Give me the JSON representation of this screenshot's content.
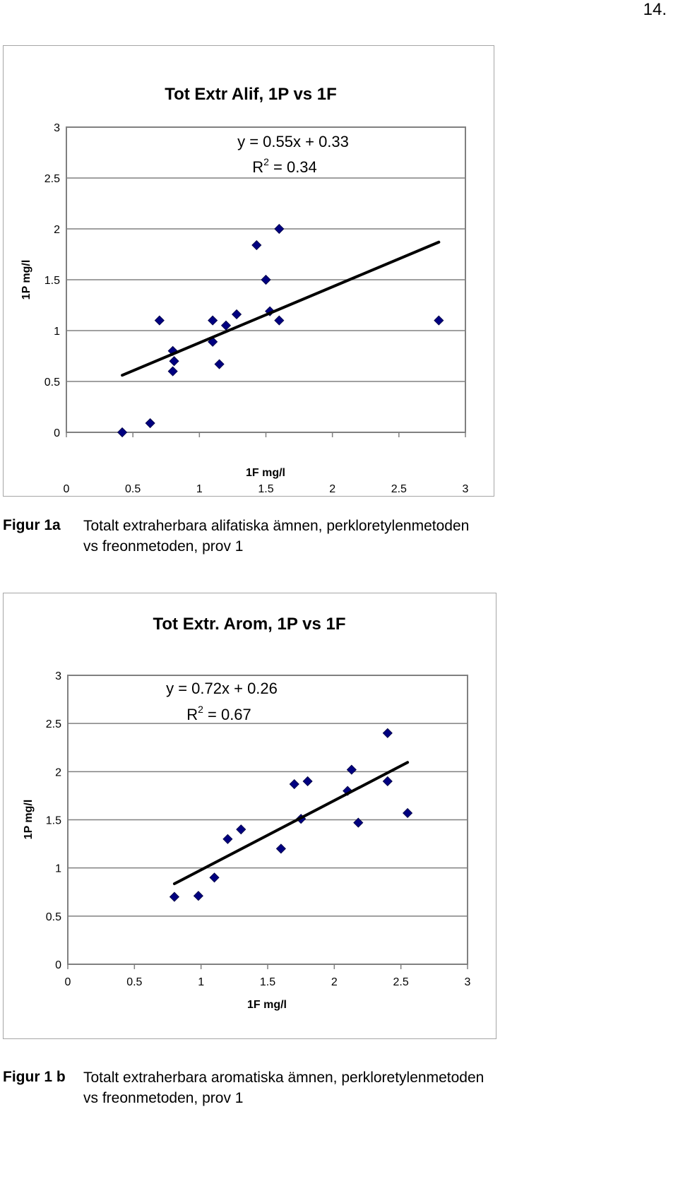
{
  "page": {
    "number": "14."
  },
  "chart_data": [
    {
      "type": "scatter",
      "title": "Tot Extr Alif, 1P vs 1F",
      "xlabel": "1F mg/l",
      "ylabel": "1P mg/l",
      "xlim": [
        0,
        3
      ],
      "ylim": [
        0,
        3
      ],
      "x_ticks": [
        "0",
        "0.5",
        "1",
        "1.5",
        "2",
        "2.5",
        "3"
      ],
      "y_ticks": [
        "0",
        "0.5",
        "1",
        "1.5",
        "2",
        "2.5",
        "3"
      ],
      "grid": "horizontal",
      "marker_color": "#000080",
      "trendline_color": "#000000",
      "equation": {
        "line1": "y = 0.55x + 0.33",
        "r_prefix": "R",
        "r_sup": "2",
        "r_suffix": " = 0.34"
      },
      "trendline": {
        "slope": 0.55,
        "intercept": 0.33,
        "x_range": [
          0.42,
          2.8
        ]
      },
      "points": [
        [
          0.42,
          0.0
        ],
        [
          0.63,
          0.09
        ],
        [
          0.7,
          1.1
        ],
        [
          0.8,
          0.8
        ],
        [
          0.8,
          0.6
        ],
        [
          0.81,
          0.7
        ],
        [
          1.1,
          1.1
        ],
        [
          1.1,
          0.89
        ],
        [
          1.15,
          0.67
        ],
        [
          1.2,
          1.05
        ],
        [
          1.28,
          1.16
        ],
        [
          1.43,
          1.84
        ],
        [
          1.5,
          1.5
        ],
        [
          1.53,
          1.19
        ],
        [
          1.6,
          2.0
        ],
        [
          1.6,
          1.1
        ],
        [
          2.8,
          1.1
        ]
      ]
    },
    {
      "type": "scatter",
      "title": "Tot Extr. Arom, 1P vs 1F",
      "xlabel": "1F mg/l",
      "ylabel": "1P mg/l",
      "xlim": [
        0,
        3
      ],
      "ylim": [
        0,
        3
      ],
      "x_ticks": [
        "0",
        "0.5",
        "1",
        "1.5",
        "2",
        "2.5",
        "3"
      ],
      "y_ticks": [
        "0",
        "0.5",
        "1",
        "1.5",
        "2",
        "2.5",
        "3"
      ],
      "grid": "horizontal",
      "marker_color": "#000080",
      "trendline_color": "#000000",
      "equation": {
        "line1": "y = 0.72x + 0.26",
        "r_prefix": "R",
        "r_sup": "2",
        "r_suffix": " = 0.67"
      },
      "trendline": {
        "slope": 0.72,
        "intercept": 0.26,
        "x_range": [
          0.8,
          2.55
        ]
      },
      "points": [
        [
          0.8,
          0.7
        ],
        [
          0.98,
          0.71
        ],
        [
          1.1,
          0.9
        ],
        [
          1.2,
          1.3
        ],
        [
          1.3,
          1.4
        ],
        [
          1.6,
          1.2
        ],
        [
          1.7,
          1.87
        ],
        [
          1.75,
          1.51
        ],
        [
          1.8,
          1.9
        ],
        [
          2.1,
          1.8
        ],
        [
          2.13,
          2.02
        ],
        [
          2.18,
          1.47
        ],
        [
          2.4,
          2.4
        ],
        [
          2.4,
          1.9
        ],
        [
          2.55,
          1.57
        ]
      ]
    }
  ],
  "captions": [
    {
      "label": "Figur 1a",
      "line1": "Totalt extraherbara alifatiska ämnen, perkloretylenmetoden",
      "line2": "vs freonmetoden, prov 1"
    },
    {
      "label": "Figur 1 b",
      "line1": "Totalt extraherbara aromatiska ämnen, perkloretylenmetoden",
      "line2": "vs freonmetoden, prov 1"
    }
  ]
}
